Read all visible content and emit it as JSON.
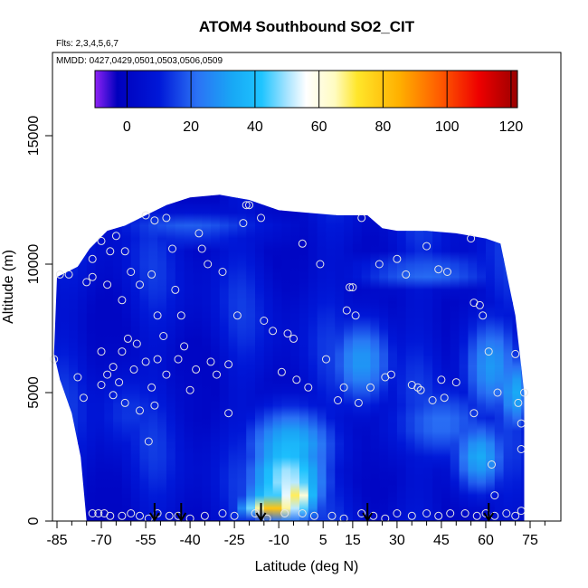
{
  "chart_data": {
    "type": "heatmap",
    "title": "ATOM4 Southbound SO2_CIT",
    "flights_label": "Flts: 2,3,4,5,6,7",
    "dates_label": "MMDD: 0427,0429,0501,0503,0506,0509",
    "xlabel": "Latitude (deg N)",
    "ylabel": "Altitude (m)",
    "xlim": [
      -87,
      83
    ],
    "ylim": [
      0,
      18000
    ],
    "x_ticks": [
      -85,
      -70,
      -55,
      -40,
      -25,
      -10,
      5,
      15,
      30,
      45,
      60,
      75
    ],
    "x_minor_ticks": [
      -80,
      -75,
      -65,
      -60,
      -50,
      -45,
      -35,
      -30,
      -20,
      -15,
      -5,
      0,
      10,
      20,
      25,
      35,
      40,
      50,
      55,
      65,
      70,
      80
    ],
    "y_ticks": [
      0,
      5000,
      10000,
      15000
    ],
    "colorbar": {
      "range": [
        -10,
        122
      ],
      "ticks": [
        0,
        20,
        40,
        60,
        80,
        100,
        120
      ],
      "stops": [
        {
          "v": -10,
          "c": "#8f22f5"
        },
        {
          "v": -3,
          "c": "#0000bd"
        },
        {
          "v": 10,
          "c": "#0018d8"
        },
        {
          "v": 22,
          "c": "#2b72f5"
        },
        {
          "v": 33,
          "c": "#18a8f5"
        },
        {
          "v": 42,
          "c": "#1ec4ff"
        },
        {
          "v": 50,
          "c": "#a8e4ff"
        },
        {
          "v": 56,
          "c": "#ffffff"
        },
        {
          "v": 65,
          "c": "#fffbc0"
        },
        {
          "v": 72,
          "c": "#ffe62a"
        },
        {
          "v": 85,
          "c": "#ffb000"
        },
        {
          "v": 98,
          "c": "#ff5a00"
        },
        {
          "v": 110,
          "c": "#ee0000"
        },
        {
          "v": 122,
          "c": "#9a0000"
        }
      ]
    },
    "envelope": [
      [
        -86,
        6500
      ],
      [
        -85,
        9500
      ],
      [
        -78,
        9900
      ],
      [
        -74,
        10600
      ],
      [
        -68,
        11300
      ],
      [
        -62,
        11500
      ],
      [
        -55,
        11900
      ],
      [
        -48,
        12300
      ],
      [
        -40,
        12600
      ],
      [
        -30,
        12700
      ],
      [
        -20,
        12500
      ],
      [
        -10,
        12100
      ],
      [
        0,
        12000
      ],
      [
        10,
        11900
      ],
      [
        20,
        11900
      ],
      [
        25,
        11400
      ],
      [
        30,
        11300
      ],
      [
        40,
        11300
      ],
      [
        50,
        11200
      ],
      [
        60,
        11000
      ],
      [
        65,
        10800
      ],
      [
        70,
        8000
      ],
      [
        73,
        5000
      ],
      [
        73,
        0
      ],
      [
        -75,
        0
      ],
      [
        -77,
        2500
      ],
      [
        -80,
        4200
      ],
      [
        -84,
        5500
      ]
    ],
    "anomalies": [
      {
        "x": -12,
        "y": 600,
        "rx": 10,
        "ry": 500,
        "v": 85
      },
      {
        "x": -4,
        "y": 1000,
        "rx": 7,
        "ry": 900,
        "v": 70
      },
      {
        "x": -7,
        "y": 1600,
        "rx": 13,
        "ry": 1800,
        "v": 52
      },
      {
        "x": -6,
        "y": 2900,
        "rx": 15,
        "ry": 1500,
        "v": 38
      },
      {
        "x": 18,
        "y": 6200,
        "rx": 11,
        "ry": 1700,
        "v": 30
      },
      {
        "x": 62,
        "y": 6000,
        "rx": 10,
        "ry": 2000,
        "v": 30
      },
      {
        "x": 70,
        "y": 5000,
        "rx": 6,
        "ry": 1500,
        "v": 34
      },
      {
        "x": 58,
        "y": 2500,
        "rx": 9,
        "ry": 1400,
        "v": 34
      },
      {
        "x": 40,
        "y": 9700,
        "rx": 26,
        "ry": 550,
        "v": 24
      },
      {
        "x": -40,
        "y": 11400,
        "rx": 28,
        "ry": 600,
        "v": 20
      },
      {
        "x": 45,
        "y": 3800,
        "rx": 18,
        "ry": 1500,
        "v": 22
      },
      {
        "x": -60,
        "y": 4200,
        "rx": 15,
        "ry": 1700,
        "v": 14
      }
    ],
    "sample_points": [
      [
        -86,
        6300
      ],
      [
        -84,
        9600
      ],
      [
        -81,
        9600
      ],
      [
        -78,
        5600
      ],
      [
        -76,
        4800
      ],
      [
        -75,
        9300
      ],
      [
        -73,
        10200
      ],
      [
        -73,
        9500
      ],
      [
        -70,
        5300
      ],
      [
        -70,
        10900
      ],
      [
        -70,
        6600
      ],
      [
        -68,
        5700
      ],
      [
        -68,
        9200
      ],
      [
        -67,
        10500
      ],
      [
        -66,
        4900
      ],
      [
        -66,
        6000
      ],
      [
        -65,
        11100
      ],
      [
        -64,
        5400
      ],
      [
        -63,
        6600
      ],
      [
        -63,
        8600
      ],
      [
        -62,
        10500
      ],
      [
        -62,
        4600
      ],
      [
        -61,
        7100
      ],
      [
        -60,
        9700
      ],
      [
        -59,
        5900
      ],
      [
        -58,
        6900
      ],
      [
        -57,
        9200
      ],
      [
        -57,
        4300
      ],
      [
        -55,
        6200
      ],
      [
        -55,
        11900
      ],
      [
        -54,
        3100
      ],
      [
        -53,
        5200
      ],
      [
        -53,
        9600
      ],
      [
        -52,
        4500
      ],
      [
        -52,
        11700
      ],
      [
        -51,
        8000
      ],
      [
        -51,
        6300
      ],
      [
        -49,
        7200
      ],
      [
        -48,
        5700
      ],
      [
        -48,
        11800
      ],
      [
        -46,
        10600
      ],
      [
        -45,
        9000
      ],
      [
        -44,
        6300
      ],
      [
        -43,
        8000
      ],
      [
        -42,
        6800
      ],
      [
        -40,
        5100
      ],
      [
        -38,
        5900
      ],
      [
        -37,
        11200
      ],
      [
        -36,
        10600
      ],
      [
        -34,
        10000
      ],
      [
        -33,
        6200
      ],
      [
        -31,
        5700
      ],
      [
        -29,
        9700
      ],
      [
        -27,
        4200
      ],
      [
        -27,
        6100
      ],
      [
        -24,
        8000
      ],
      [
        -22,
        11600
      ],
      [
        -21,
        12300
      ],
      [
        -20,
        12300
      ],
      [
        -16,
        11800
      ],
      [
        -15,
        7800
      ],
      [
        -12,
        7400
      ],
      [
        -9,
        5800
      ],
      [
        -7,
        7300
      ],
      [
        -5,
        7100
      ],
      [
        -4,
        5500
      ],
      [
        -2,
        10800
      ],
      [
        0,
        5200
      ],
      [
        4,
        10000
      ],
      [
        6,
        6300
      ],
      [
        10,
        4700
      ],
      [
        12,
        5200
      ],
      [
        13,
        8200
      ],
      [
        14,
        9100
      ],
      [
        15,
        9100
      ],
      [
        16,
        8000
      ],
      [
        17,
        4600
      ],
      [
        18,
        11800
      ],
      [
        21,
        5200
      ],
      [
        24,
        10000
      ],
      [
        26,
        5600
      ],
      [
        28,
        5700
      ],
      [
        30,
        10200
      ],
      [
        33,
        9600
      ],
      [
        35,
        5300
      ],
      [
        37,
        5200
      ],
      [
        38,
        5100
      ],
      [
        40,
        10700
      ],
      [
        42,
        4700
      ],
      [
        44,
        9800
      ],
      [
        45,
        5500
      ],
      [
        46,
        4800
      ],
      [
        47,
        9700
      ],
      [
        50,
        5400
      ],
      [
        55,
        11000
      ],
      [
        56,
        8500
      ],
      [
        56,
        4200
      ],
      [
        58,
        8400
      ],
      [
        59,
        8000
      ],
      [
        61,
        6600
      ],
      [
        62,
        2200
      ],
      [
        63,
        1000
      ],
      [
        64,
        5000
      ],
      [
        70,
        6500
      ],
      [
        71,
        4600
      ],
      [
        72,
        3800
      ],
      [
        72,
        2800
      ],
      [
        73,
        5000
      ],
      [
        -73,
        300
      ],
      [
        -71,
        300
      ],
      [
        -69,
        300
      ],
      [
        -67,
        200
      ],
      [
        -63,
        200
      ],
      [
        -60,
        300
      ],
      [
        -57,
        200
      ],
      [
        -54,
        100
      ],
      [
        -51,
        300
      ],
      [
        -47,
        200
      ],
      [
        -44,
        200
      ],
      [
        -40,
        100
      ],
      [
        -35,
        200
      ],
      [
        -29,
        300
      ],
      [
        -25,
        200
      ],
      [
        -18,
        300
      ],
      [
        -14,
        100
      ],
      [
        -8,
        300
      ],
      [
        -2,
        300
      ],
      [
        2,
        200
      ],
      [
        8,
        200
      ],
      [
        12,
        100
      ],
      [
        18,
        300
      ],
      [
        22,
        200
      ],
      [
        26,
        100
      ],
      [
        30,
        300
      ],
      [
        35,
        200
      ],
      [
        40,
        300
      ],
      [
        44,
        200
      ],
      [
        48,
        300
      ],
      [
        53,
        300
      ],
      [
        57,
        200
      ],
      [
        60,
        300
      ],
      [
        63,
        200
      ],
      [
        67,
        300
      ],
      [
        70,
        200
      ],
      [
        72,
        400
      ]
    ],
    "arrows_lat": [
      -52,
      -43,
      -16,
      20,
      61
    ]
  }
}
